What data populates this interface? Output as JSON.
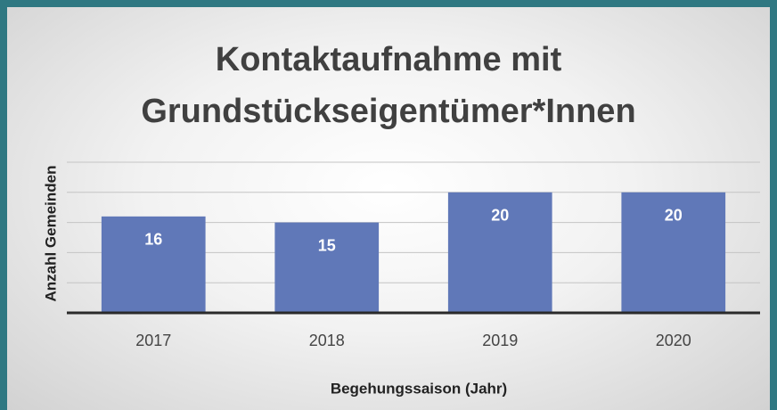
{
  "chart_data": {
    "type": "bar",
    "title": "Kontaktaufnahme mit Grundstückseigentümer*Innen",
    "x_label": "Begehungssaison (Jahr)",
    "y_label": "Anzahl Gemeinden",
    "categories": [
      "2017",
      "2018",
      "2019",
      "2020"
    ],
    "values": [
      16,
      15,
      20,
      20
    ],
    "color": "#6078b8",
    "ylim": [
      0,
      25
    ],
    "yticks": [
      0,
      5,
      10,
      15,
      20,
      25
    ],
    "grid": true
  }
}
